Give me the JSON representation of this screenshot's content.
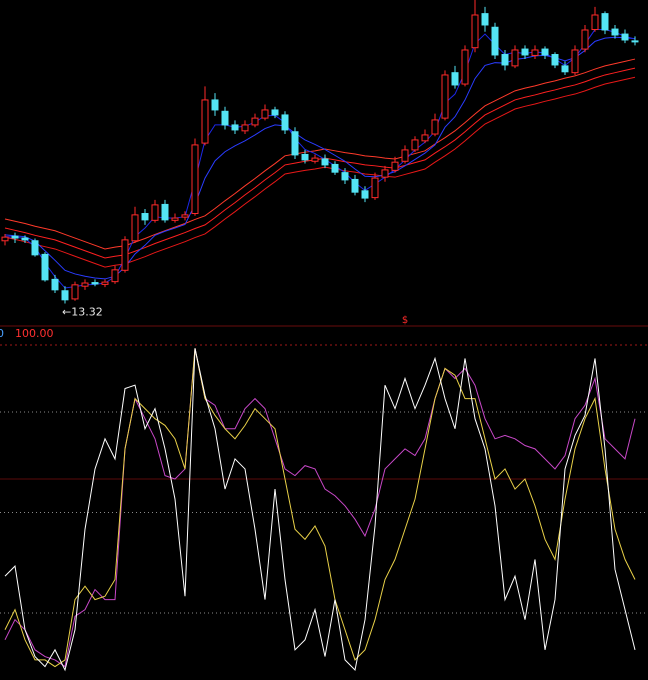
{
  "chart_data": [
    {
      "type": "candlestick",
      "ylim": [
        13,
        20
      ],
      "up_color": "#ff2a2a",
      "down_color": "#54e4f4",
      "open": [
        14.7,
        14.8,
        14.76,
        14.7,
        14.4,
        13.85,
        13.6,
        13.42,
        13.7,
        13.78,
        13.74,
        13.8,
        14.05,
        14.7,
        15.3,
        15.15,
        15.5,
        15.15,
        15.22,
        15.3,
        16.85,
        17.8,
        17.55,
        17.25,
        17.12,
        17.25,
        17.4,
        17.58,
        17.47,
        17.1,
        16.6,
        16.45,
        16.5,
        16.38,
        16.2,
        16.05,
        15.8,
        15.65,
        16.1,
        16.25,
        16.45,
        16.7,
        16.9,
        17.05,
        17.4,
        18.4,
        18.15,
        18.95,
        19.7,
        19.4,
        18.8,
        18.55,
        18.92,
        18.78,
        18.92,
        18.8,
        18.55,
        18.4,
        18.92,
        19.35,
        19.7,
        19.36,
        19.25,
        19.1
      ],
      "high": [
        14.85,
        14.88,
        14.82,
        14.75,
        14.45,
        13.95,
        13.7,
        13.8,
        13.85,
        13.85,
        13.85,
        14.15,
        14.8,
        15.45,
        15.4,
        15.6,
        15.6,
        15.3,
        15.35,
        16.95,
        18.1,
        17.95,
        17.65,
        17.35,
        17.35,
        17.5,
        17.7,
        17.65,
        17.55,
        17.2,
        16.7,
        16.6,
        16.6,
        16.45,
        16.3,
        16.15,
        15.9,
        16.2,
        16.35,
        16.55,
        16.8,
        17.0,
        17.15,
        17.5,
        18.45,
        18.55,
        19.0,
        20.0,
        19.85,
        19.5,
        18.9,
        19.0,
        19.0,
        19.0,
        18.98,
        18.85,
        18.65,
        19.0,
        19.45,
        19.85,
        19.75,
        19.45,
        19.35,
        19.2
      ],
      "low": [
        14.6,
        14.65,
        14.65,
        14.35,
        13.8,
        13.55,
        13.32,
        13.38,
        13.62,
        13.7,
        13.68,
        13.75,
        14.0,
        14.65,
        15.05,
        15.1,
        15.1,
        15.1,
        15.15,
        15.25,
        16.8,
        17.45,
        17.15,
        17.05,
        17.05,
        17.2,
        17.35,
        17.4,
        17.05,
        16.5,
        16.4,
        16.4,
        16.3,
        16.15,
        15.95,
        15.7,
        15.55,
        15.6,
        16.0,
        16.2,
        16.4,
        16.65,
        16.85,
        17.0,
        17.35,
        18.05,
        18.1,
        18.85,
        19.3,
        18.7,
        18.45,
        18.5,
        18.7,
        18.7,
        18.7,
        18.5,
        18.35,
        18.35,
        18.85,
        19.3,
        19.25,
        19.15,
        19.05,
        19.0
      ],
      "close": [
        14.78,
        14.76,
        14.72,
        14.39,
        13.84,
        13.62,
        13.4,
        13.73,
        13.77,
        13.75,
        13.79,
        14.06,
        14.72,
        15.27,
        15.16,
        15.49,
        15.16,
        15.2,
        15.27,
        16.81,
        17.8,
        17.58,
        17.25,
        17.14,
        17.25,
        17.4,
        17.58,
        17.47,
        17.14,
        16.59,
        16.48,
        16.52,
        16.37,
        16.21,
        16.04,
        15.77,
        15.64,
        16.08,
        16.26,
        16.43,
        16.7,
        16.92,
        17.03,
        17.36,
        18.35,
        18.13,
        18.9,
        19.67,
        19.45,
        18.79,
        18.57,
        18.9,
        18.79,
        18.9,
        18.79,
        18.57,
        18.42,
        18.9,
        19.34,
        19.67,
        19.34,
        19.23,
        19.12,
        19.08
      ],
      "series": [
        {
          "color": "#ff3a2a",
          "values": [
            15.18,
            15.13,
            15.08,
            15.02,
            14.97,
            14.92,
            14.84,
            14.76,
            14.68,
            14.6,
            14.52,
            14.56,
            14.59,
            14.67,
            14.75,
            14.84,
            14.92,
            15.0,
            15.08,
            15.17,
            15.25,
            15.41,
            15.58,
            15.74,
            15.91,
            16.07,
            16.24,
            16.4,
            16.57,
            16.61,
            16.65,
            16.68,
            16.72,
            16.68,
            16.64,
            16.61,
            16.57,
            16.55,
            16.52,
            16.5,
            16.56,
            16.62,
            16.68,
            16.83,
            16.97,
            17.12,
            17.3,
            17.49,
            17.67,
            17.78,
            17.89,
            18.0,
            18.06,
            18.11,
            18.17,
            18.22,
            18.28,
            18.33,
            18.4,
            18.48,
            18.55,
            18.6,
            18.65,
            18.7
          ]
        },
        {
          "color": "#ff2020",
          "values": [
            14.98,
            14.93,
            14.88,
            14.82,
            14.77,
            14.72,
            14.64,
            14.56,
            14.48,
            14.4,
            14.32,
            14.36,
            14.39,
            14.47,
            14.55,
            14.64,
            14.72,
            14.8,
            14.88,
            14.97,
            15.05,
            15.21,
            15.38,
            15.54,
            15.71,
            15.87,
            16.04,
            16.2,
            16.37,
            16.41,
            16.45,
            16.48,
            16.52,
            16.48,
            16.44,
            16.41,
            16.37,
            16.35,
            16.32,
            16.3,
            16.36,
            16.42,
            16.48,
            16.63,
            16.77,
            16.92,
            17.1,
            17.29,
            17.47,
            17.58,
            17.69,
            17.8,
            17.86,
            17.91,
            17.97,
            18.02,
            18.08,
            18.13,
            18.2,
            18.28,
            18.35,
            18.4,
            18.45,
            18.5
          ]
        },
        {
          "color": "#e81818",
          "values": [
            14.78,
            14.73,
            14.68,
            14.62,
            14.57,
            14.52,
            14.44,
            14.36,
            14.28,
            14.2,
            14.12,
            14.16,
            14.19,
            14.27,
            14.35,
            14.44,
            14.52,
            14.6,
            14.68,
            14.77,
            14.85,
            15.01,
            15.18,
            15.34,
            15.51,
            15.67,
            15.84,
            16.0,
            16.17,
            16.21,
            16.25,
            16.28,
            16.32,
            16.28,
            16.24,
            16.21,
            16.17,
            16.15,
            16.12,
            16.1,
            16.16,
            16.22,
            16.28,
            16.43,
            16.57,
            16.72,
            16.9,
            17.09,
            17.27,
            17.38,
            17.49,
            17.6,
            17.66,
            17.71,
            17.77,
            17.82,
            17.88,
            17.93,
            18.0,
            18.08,
            18.15,
            18.2,
            18.25,
            18.3
          ]
        },
        {
          "color": "#2a3cff",
          "values": [
            14.83,
            14.81,
            14.79,
            14.69,
            14.48,
            14.27,
            14.05,
            13.97,
            13.92,
            13.88,
            13.86,
            13.92,
            14.12,
            14.41,
            14.6,
            14.82,
            14.91,
            14.98,
            15.06,
            15.5,
            16.08,
            16.46,
            16.66,
            16.79,
            16.9,
            17.03,
            17.17,
            17.25,
            17.23,
            17.07,
            16.92,
            16.82,
            16.71,
            16.58,
            16.45,
            16.28,
            16.12,
            16.11,
            16.15,
            16.22,
            16.35,
            16.49,
            16.63,
            16.81,
            17.2,
            17.43,
            17.8,
            18.27,
            18.56,
            18.62,
            18.61,
            18.69,
            18.72,
            18.77,
            18.78,
            18.73,
            18.66,
            18.73,
            18.89,
            19.09,
            19.16,
            19.18,
            19.17,
            19.15
          ]
        },
        {
          "color": "#1c28e8",
          "values": [
            14.79,
            14.78,
            14.75,
            14.57,
            14.21,
            13.91,
            13.66,
            13.69,
            13.73,
            13.74,
            13.77,
            13.91,
            14.32,
            14.79,
            14.98,
            15.23,
            15.2,
            15.2,
            15.23,
            16.02,
            16.91,
            17.25,
            17.25,
            17.2,
            17.22,
            17.31,
            17.45,
            17.46,
            17.3,
            16.95,
            16.71,
            16.62,
            16.49,
            16.35,
            16.2,
            15.98,
            15.81,
            15.95,
            16.1,
            16.27,
            16.48,
            16.7,
            16.87,
            17.11,
            17.73,
            17.93,
            18.41,
            19.04,
            19.25,
            19.02,
            18.8,
            18.85,
            18.82,
            18.86,
            18.83,
            18.7,
            18.56,
            18.73,
            19.03,
            19.35,
            19.35,
            19.29,
            19.2,
            19.14
          ]
        }
      ],
      "low_label": {
        "value": 13.32,
        "label": "←13.32"
      },
      "marker": "$"
    },
    {
      "type": "line",
      "ylim": [
        0,
        100
      ],
      "grid_lines": [
        20,
        50,
        80
      ],
      "reference_line": 60,
      "top_label": {
        "value": 100,
        "label": "100.00"
      },
      "panel_label": "0",
      "series": [
        {
          "color": "#c848c8",
          "values": [
            12,
            18,
            15,
            9,
            7,
            6,
            4,
            19,
            21,
            27,
            24,
            24,
            69,
            84,
            78,
            72,
            61,
            60,
            63,
            99,
            84,
            82,
            75,
            75,
            81,
            84,
            81,
            72,
            63,
            61,
            64,
            63,
            57,
            55,
            52,
            48,
            43,
            51,
            63,
            66,
            69,
            67,
            72,
            84,
            93,
            90,
            93,
            88,
            78,
            72,
            73,
            72,
            70,
            69,
            66,
            63,
            67,
            78,
            82,
            90,
            72,
            69,
            66,
            78
          ]
        },
        {
          "color": "#e8d048",
          "values": [
            15,
            21,
            12,
            6,
            6,
            4,
            6,
            24,
            28,
            24,
            25,
            30,
            69,
            84,
            81,
            78,
            76,
            72,
            63,
            99,
            84,
            79,
            75,
            72,
            76,
            81,
            78,
            75,
            60,
            45,
            42,
            46,
            40,
            24,
            15,
            6,
            9,
            18,
            30,
            36,
            45,
            54,
            69,
            84,
            93,
            91,
            84,
            84,
            72,
            60,
            63,
            57,
            60,
            52,
            42,
            36,
            54,
            69,
            78,
            84,
            63,
            45,
            36,
            30
          ]
        },
        {
          "color": "#ffffff",
          "values": [
            31,
            34,
            15,
            7,
            4,
            9,
            3,
            15,
            45,
            63,
            72,
            66,
            87,
            88,
            75,
            81,
            69,
            54,
            25,
            99,
            85,
            75,
            57,
            66,
            63,
            45,
            24,
            57,
            30,
            9,
            12,
            21,
            7,
            24,
            6,
            3,
            18,
            46,
            88,
            81,
            90,
            81,
            88,
            96,
            84,
            75,
            96,
            78,
            69,
            52,
            24,
            31,
            18,
            36,
            9,
            24,
            63,
            73,
            79,
            96,
            69,
            33,
            21,
            9
          ]
        }
      ]
    }
  ]
}
